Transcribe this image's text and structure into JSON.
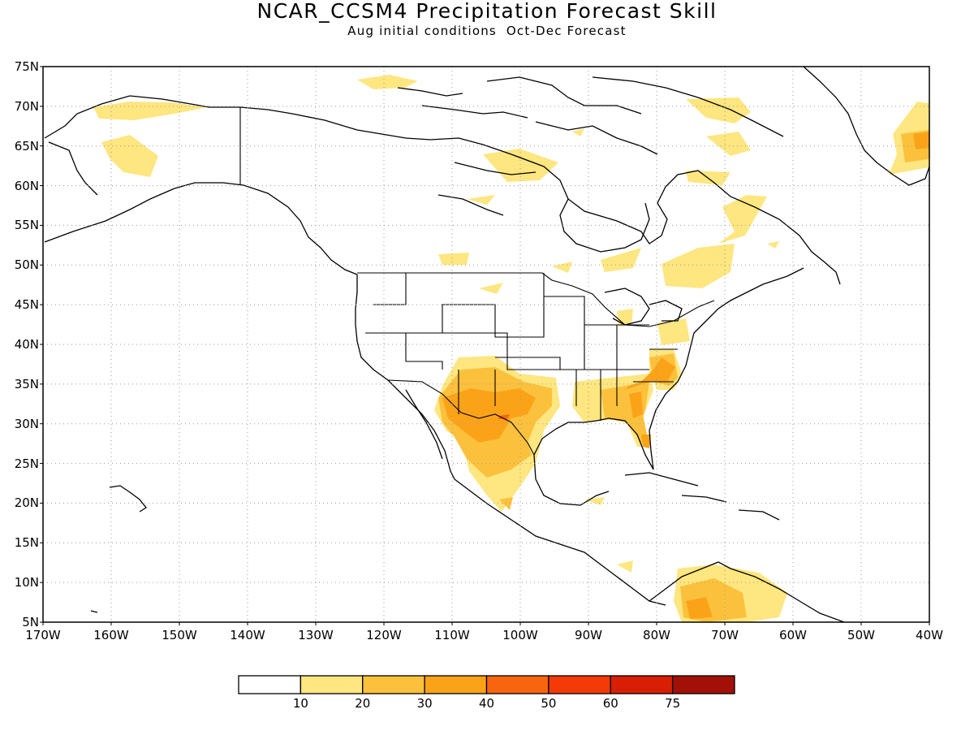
{
  "title": "NCAR_CCSM4 Precipitation Forecast Skill",
  "subtitle": "Aug initial conditions  Oct-Dec Forecast",
  "lat_ticks": [
    "75N",
    "70N",
    "65N",
    "60N",
    "55N",
    "50N",
    "45N",
    "40N",
    "35N",
    "30N",
    "25N",
    "20N",
    "15N",
    "10N",
    "5N"
  ],
  "lon_ticks": [
    "170W",
    "160W",
    "150W",
    "140W",
    "130W",
    "120W",
    "110W",
    "100W",
    "90W",
    "80W",
    "70W",
    "60W",
    "50W",
    "40W"
  ],
  "colorbar": {
    "labels": [
      "10",
      "20",
      "30",
      "40",
      "50",
      "60",
      "75"
    ],
    "colors": [
      "#ffffff",
      "#fee680",
      "#fcc13c",
      "#fba318",
      "#f8650f",
      "#f33a07",
      "#d81f06",
      "#a31008"
    ]
  },
  "colors": {
    "land_outline": "#000000",
    "grid": "#999999"
  }
}
